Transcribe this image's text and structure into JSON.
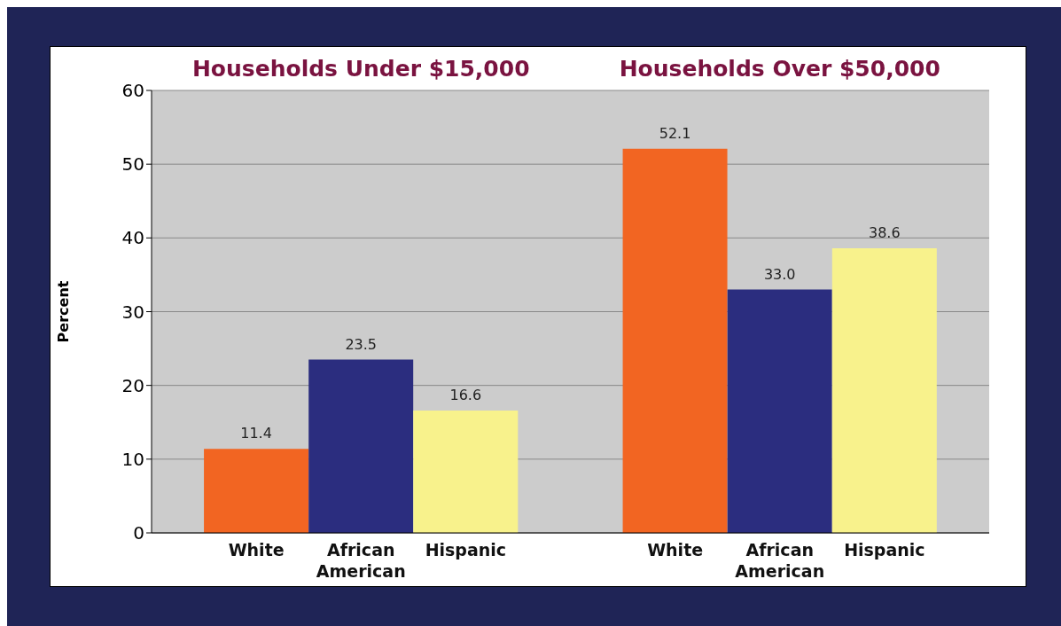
{
  "chart_data": {
    "type": "bar",
    "ylabel": "Percent",
    "annotations": [
      "Households Under $15,000",
      "Households Over $50,000"
    ],
    "categories": [
      "White",
      "African American",
      "Hispanic",
      null,
      "White",
      "African American",
      "Hispanic"
    ],
    "values": [
      11.4,
      23.5,
      16.6,
      null,
      52.1,
      33.0,
      38.6
    ],
    "colors": [
      "#f26522",
      "#2b2d7f",
      "#f8f28c",
      null,
      "#f26522",
      "#2b2d7f",
      "#f8f28c"
    ],
    "value_labels": [
      "11.4",
      "23.5",
      "16.6",
      null,
      "52.1",
      "33.0",
      "38.6"
    ],
    "ylim": [
      0,
      60
    ],
    "yticks": [
      0,
      10,
      20,
      30,
      40,
      50,
      60
    ],
    "grid": "y",
    "legend": false
  }
}
